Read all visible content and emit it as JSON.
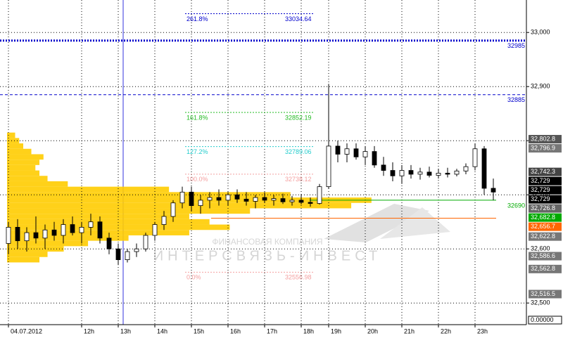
{
  "chart_data": {
    "type": "candlestick",
    "categories": [
      "04.07.2012",
      null,
      null,
      null,
      null,
      null,
      null,
      null,
      "12h",
      null,
      null,
      null,
      "13h",
      null,
      null,
      null,
      "14h",
      null,
      null,
      null,
      "15h",
      null,
      null,
      null,
      "16h",
      null,
      null,
      null,
      "17h",
      null,
      null,
      null,
      "18h",
      null,
      null,
      "19h",
      null,
      null,
      null,
      "20h",
      null,
      null,
      null,
      "21h",
      null,
      null,
      null,
      "22h",
      null,
      null,
      null,
      "23h",
      null,
      null
    ],
    "candles": [
      [
        32610,
        32650,
        32590,
        32640
      ],
      [
        32640,
        32655,
        32600,
        32615
      ],
      [
        32615,
        32640,
        32595,
        32630
      ],
      [
        32630,
        32660,
        32610,
        32620
      ],
      [
        32620,
        32645,
        32600,
        32635
      ],
      [
        32635,
        32650,
        32615,
        32625
      ],
      [
        32625,
        32655,
        32610,
        32645
      ],
      [
        32645,
        32660,
        32625,
        32630
      ],
      [
        32630,
        32650,
        32610,
        32640
      ],
      [
        32640,
        32665,
        32625,
        32650
      ],
      [
        32650,
        32660,
        32610,
        32620
      ],
      [
        32620,
        32630,
        32590,
        32600
      ],
      [
        32600,
        32610,
        32570,
        32580
      ],
      [
        32580,
        32600,
        32575,
        32595
      ],
      [
        32595,
        32610,
        32585,
        32600
      ],
      [
        32600,
        32630,
        32595,
        32625
      ],
      [
        32625,
        32650,
        32615,
        32645
      ],
      [
        32645,
        32670,
        32635,
        32660
      ],
      [
        32660,
        32690,
        32650,
        32685
      ],
      [
        32685,
        32715,
        32675,
        32705
      ],
      [
        32705,
        32715,
        32670,
        32680
      ],
      [
        32680,
        32700,
        32665,
        32690
      ],
      [
        32690,
        32705,
        32675,
        32695
      ],
      [
        32695,
        32710,
        32680,
        32690
      ],
      [
        32690,
        32705,
        32680,
        32700
      ],
      [
        32700,
        32710,
        32685,
        32692
      ],
      [
        32692,
        32705,
        32680,
        32688
      ],
      [
        32688,
        32700,
        32675,
        32695
      ],
      [
        32695,
        32705,
        32685,
        32690
      ],
      [
        32690,
        32700,
        32680,
        32693
      ],
      [
        32693,
        32702,
        32683,
        32687
      ],
      [
        32687,
        32698,
        32680,
        32690
      ],
      [
        32690,
        32700,
        32682,
        32686
      ],
      [
        32686,
        32695,
        32678,
        32684
      ],
      [
        32684,
        32720,
        32682,
        32715
      ],
      [
        32715,
        32905,
        32712,
        32790
      ],
      [
        32790,
        32800,
        32760,
        32775
      ],
      [
        32775,
        32795,
        32760,
        32785
      ],
      [
        32785,
        32795,
        32765,
        32770
      ],
      [
        32770,
        32790,
        32755,
        32780
      ],
      [
        32780,
        32790,
        32750,
        32755
      ],
      [
        32755,
        32770,
        32735,
        32745
      ],
      [
        32745,
        32760,
        32725,
        32735
      ],
      [
        32735,
        32755,
        32720,
        32745
      ],
      [
        32745,
        32755,
        32730,
        32738
      ],
      [
        32738,
        32750,
        32728,
        32742
      ],
      [
        32742,
        32752,
        32732,
        32736
      ],
      [
        32736,
        32748,
        32730,
        32740
      ],
      [
        32740,
        32750,
        32732,
        32738
      ],
      [
        32738,
        32748,
        32734,
        32744
      ],
      [
        32744,
        32758,
        32738,
        32752
      ],
      [
        32752,
        32795,
        32745,
        32785
      ],
      [
        32785,
        32790,
        32700,
        32712
      ],
      [
        32712,
        32730,
        32690,
        32705
      ]
    ],
    "up_color": "#ffffff",
    "down_color": "#000000",
    "ylim": [
      32460,
      33060
    ],
    "yticks": [
      {
        "value": 32500,
        "label": "32,500"
      },
      {
        "value": 32600,
        "label": "32,600"
      },
      {
        "value": 32700,
        "label": "32,700"
      },
      {
        "value": 32800,
        "label": "32,800"
      },
      {
        "value": 32900,
        "label": "32,900"
      },
      {
        "value": 33000,
        "label": "33,000"
      }
    ],
    "grid": true,
    "volume_profile": {
      "color": "#ffcc00",
      "xlim": [
        0,
        130
      ],
      "prices": [
        32580,
        32590,
        32600,
        32610,
        32620,
        32630,
        32640,
        32650,
        32660,
        32670,
        32680,
        32690,
        32700,
        32710,
        32720,
        32730,
        32740,
        32750,
        32760,
        32770,
        32780,
        32790,
        32800,
        32810
      ],
      "volumes": [
        8,
        10,
        14,
        20,
        30,
        45,
        55,
        50,
        45,
        60,
        85,
        90,
        70,
        40,
        15,
        10,
        8,
        7,
        8,
        9,
        6,
        4,
        3,
        2
      ]
    },
    "levels": [
      {
        "value": 32985,
        "color": "#0000cc",
        "style": "dotted",
        "width": 3,
        "label": 32985
      },
      {
        "value": 32885,
        "color": "#0000cc",
        "style": "dashed",
        "width": 1,
        "label": 32885
      },
      {
        "value": 32690,
        "color": "#00aa00",
        "style": "solid",
        "width": 1,
        "label": 32690
      },
      {
        "value": 32656.7,
        "color": "#ff6600",
        "style": "solid",
        "width": 1
      }
    ],
    "fibonacci": [
      {
        "label": "261.8%",
        "value": 33034.64,
        "color": "#0000cc"
      },
      {
        "label": "161.8%",
        "value": 32852.19,
        "color": "#22bb22"
      },
      {
        "label": "127.2%",
        "value": 32789.06,
        "color": "#22cccc"
      },
      {
        "label": "100.0%",
        "value": 32738.12,
        "color": "#f4a0a0"
      },
      {
        "label": "0.0%",
        "value": 32556.98,
        "color": "#f4a0a0"
      }
    ],
    "price_labels": [
      {
        "value": 32802.8,
        "label": "32,802.8",
        "color": "#555555"
      },
      {
        "value": 32796.9,
        "label": "32,796.9",
        "color": "#777777"
      },
      {
        "value": 32742.3,
        "label": "32,742.3",
        "color": "#444444"
      },
      {
        "value": 32729,
        "label": "32,729",
        "color": "#000000"
      },
      {
        "value": 32729,
        "label": "32,729",
        "color": "#000000"
      },
      {
        "value": 32729,
        "label": "32,729",
        "color": "#000000"
      },
      {
        "value": 32726.8,
        "label": "32,726.8",
        "color": "#666666"
      },
      {
        "value": 32682.8,
        "label": "32,682.8",
        "color": "#00aa00"
      },
      {
        "value": 32656.7,
        "label": "32,656.7",
        "color": "#ff6600"
      },
      {
        "value": 32622.8,
        "label": "32,622.8",
        "color": "#777777"
      },
      {
        "value": 32586.6,
        "label": "32,586.6",
        "color": "#777777"
      },
      {
        "value": 32562.8,
        "label": "32,562.8",
        "color": "#777777"
      },
      {
        "value": 32516.5,
        "label": "32,516.5",
        "color": "#777777"
      }
    ],
    "indicator_label": "0.00000",
    "watermark": [
      "ФИНАНСОВАЯ КОМПАНИЯ",
      "ИНТЕРСВЯЗЬ-ИНВЕСТ"
    ]
  }
}
